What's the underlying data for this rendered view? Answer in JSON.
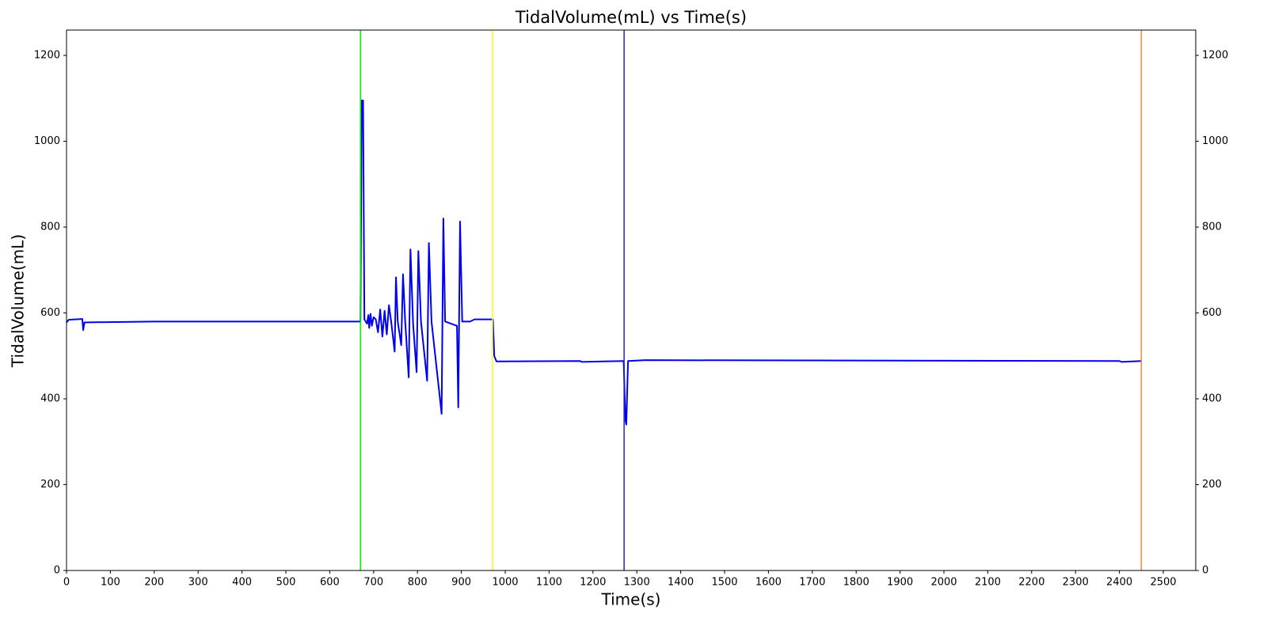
{
  "chart_data": {
    "type": "line",
    "title": "TidalVolume(mL) vs Time(s)",
    "x_label": "Time(s)",
    "y_label": "TidalVolume(mL)",
    "xlim": [
      0,
      2574
    ],
    "ylim": [
      0,
      1259
    ],
    "y2lim": [
      0,
      1259
    ],
    "xticks": [
      0,
      100,
      200,
      300,
      400,
      500,
      600,
      700,
      800,
      900,
      1000,
      1100,
      1200,
      1300,
      1400,
      1500,
      1600,
      1700,
      1800,
      1900,
      2000,
      2100,
      2200,
      2300,
      2400,
      2500
    ],
    "yticks": [
      0,
      200,
      400,
      600,
      800,
      1000,
      1200
    ],
    "y2ticks": [
      0,
      200,
      400,
      600,
      800,
      1000,
      1200
    ],
    "vlines": [
      {
        "x": 670,
        "color": "#00ee00"
      },
      {
        "x": 971,
        "color": "#ffff00"
      },
      {
        "x": 1271,
        "color": "#2222cc"
      },
      {
        "x": 2450,
        "color": "#ff8833"
      }
    ],
    "series": [
      {
        "color": "#0000ee",
        "x": [
          0,
          5,
          36,
          38,
          41,
          200,
          670,
          673,
          676,
          679,
          685,
          688,
          690,
          693,
          696,
          700,
          705,
          710,
          715,
          720,
          725,
          730,
          735,
          740,
          748,
          751,
          755,
          763,
          767,
          772,
          780,
          784,
          790,
          798,
          802,
          808,
          822,
          826,
          832,
          855,
          859,
          863,
          890,
          893,
          897,
          902,
          920,
          930,
          965,
          972,
          975,
          980,
          1170,
          1175,
          1270,
          1274,
          1276,
          1280,
          1320,
          2400,
          2405,
          2450
        ],
        "values": [
          578,
          584,
          586,
          560,
          578,
          580,
          580,
          1095,
          1095,
          585,
          575,
          595,
          565,
          598,
          570,
          590,
          585,
          555,
          608,
          545,
          605,
          550,
          618,
          580,
          510,
          683,
          580,
          525,
          690,
          580,
          450,
          748,
          575,
          462,
          744,
          580,
          442,
          763,
          580,
          365,
          820,
          580,
          570,
          380,
          813,
          580,
          580,
          585,
          585,
          585,
          500,
          487,
          488,
          486,
          488,
          350,
          340,
          488,
          490,
          488,
          486,
          488
        ]
      }
    ]
  }
}
